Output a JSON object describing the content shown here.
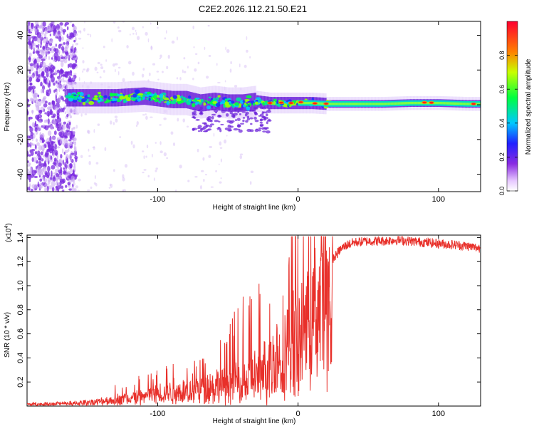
{
  "figure": {
    "title": "C2E2.2026.112.21.50.E21"
  },
  "chart_data": [
    {
      "type": "heatmap",
      "title": "C2E2.2026.112.21.50.E21",
      "xlabel": "Height of straight line (km)",
      "ylabel": "Frequency (Hz)",
      "xlim": [
        -193,
        130
      ],
      "ylim": [
        -50,
        48
      ],
      "xticks": [
        -100,
        0,
        100
      ],
      "xtick_labels": [
        "-100",
        "0",
        "100"
      ],
      "yticks": [
        -40,
        -20,
        0,
        20,
        40
      ],
      "ytick_labels": [
        "-40",
        "-20",
        "0",
        "20",
        "40"
      ],
      "colorbar": {
        "label": "Normalized spectral amplitude",
        "range": [
          0,
          1
        ],
        "ticks": [
          0,
          0.2,
          0.4,
          0.6,
          0.8
        ],
        "tick_labels": [
          "0.0",
          "0.2",
          "0.4",
          "0.6",
          "0.8"
        ]
      },
      "signal_center_freq_hz": [
        [
          -170,
          4
        ],
        [
          -150,
          4
        ],
        [
          -130,
          4
        ],
        [
          -110,
          5
        ],
        [
          -100,
          4
        ],
        [
          -90,
          3
        ],
        [
          -80,
          3
        ],
        [
          -70,
          1
        ],
        [
          -60,
          2
        ],
        [
          -50,
          1
        ],
        [
          -40,
          1
        ],
        [
          -30,
          2
        ],
        [
          -20,
          1
        ],
        [
          -10,
          1
        ],
        [
          0,
          1
        ],
        [
          10,
          1
        ],
        [
          20,
          0.5
        ],
        [
          40,
          0.5
        ],
        [
          60,
          0.5
        ],
        [
          80,
          1
        ],
        [
          100,
          1
        ],
        [
          120,
          0.5
        ],
        [
          130,
          0.5
        ]
      ]
    },
    {
      "type": "line",
      "xlabel": "Height of straight line (km)",
      "ylabel": "SNR (10 * v/v)",
      "exponent_label": "(x10",
      "exponent_power": "4",
      "exponent_close": ")",
      "xlim": [
        -193,
        130
      ],
      "ylim": [
        0,
        1.42
      ],
      "xticks": [
        -100,
        0,
        100
      ],
      "xtick_labels": [
        "-100",
        "0",
        "100"
      ],
      "yticks": [
        0.2,
        0.4,
        0.6,
        0.8,
        1.0,
        1.2,
        1.4
      ],
      "ytick_labels": [
        "0.2",
        "0.4",
        "0.6",
        "0.8",
        "1.0",
        "1.2",
        "1.4"
      ],
      "series": [
        {
          "name": "SNR",
          "color": "#e8302a",
          "x": [
            -193,
            -180,
            -160,
            -150,
            -140,
            -130,
            -120,
            -110,
            -100,
            -90,
            -80,
            -70,
            -60,
            -50,
            -40,
            -30,
            -25,
            -20,
            -17,
            -15,
            -10,
            -5,
            0,
            5,
            10,
            15,
            20,
            25,
            30,
            35,
            40,
            50,
            60,
            70,
            80,
            90,
            100,
            110,
            120,
            130
          ],
          "y": [
            0.02,
            0.02,
            0.03,
            0.04,
            0.05,
            0.07,
            0.09,
            0.11,
            0.14,
            0.15,
            0.17,
            0.2,
            0.22,
            0.25,
            0.28,
            0.33,
            0.38,
            0.45,
            0.5,
            0.55,
            0.6,
            0.7,
            0.82,
            0.95,
            1.0,
            1.05,
            1.12,
            1.22,
            1.3,
            1.34,
            1.36,
            1.37,
            1.37,
            1.38,
            1.37,
            1.36,
            1.35,
            1.34,
            1.33,
            1.31
          ]
        }
      ]
    }
  ]
}
